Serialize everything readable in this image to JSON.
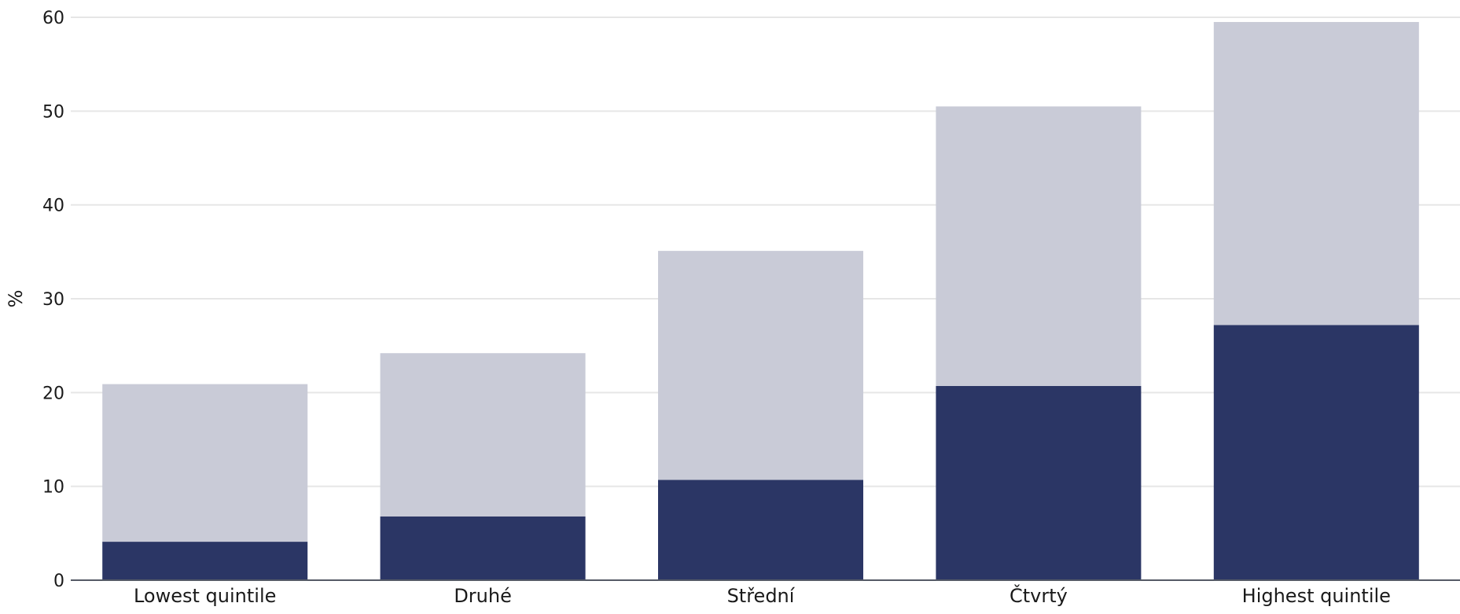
{
  "chart_data": {
    "type": "bar",
    "stacked": true,
    "categories": [
      "Lowest quintile",
      "Druhé",
      "Střední",
      "Čtvrtý",
      "Highest quintile"
    ],
    "series": [
      {
        "values": [
          4.1,
          6.8,
          10.7,
          20.7,
          27.2
        ],
        "color": "#2b3665"
      },
      {
        "values": [
          16.8,
          17.4,
          24.4,
          29.8,
          32.3
        ],
        "color": "#c9cbd7"
      }
    ],
    "totals": [
      20.9,
      24.2,
      35.1,
      50.5,
      59.5
    ],
    "xlabel": "",
    "ylabel": "%",
    "ylim": [
      0,
      60
    ],
    "yticks": [
      0,
      10,
      20,
      30,
      40,
      50,
      60
    ],
    "grid": true,
    "legend": "none"
  }
}
